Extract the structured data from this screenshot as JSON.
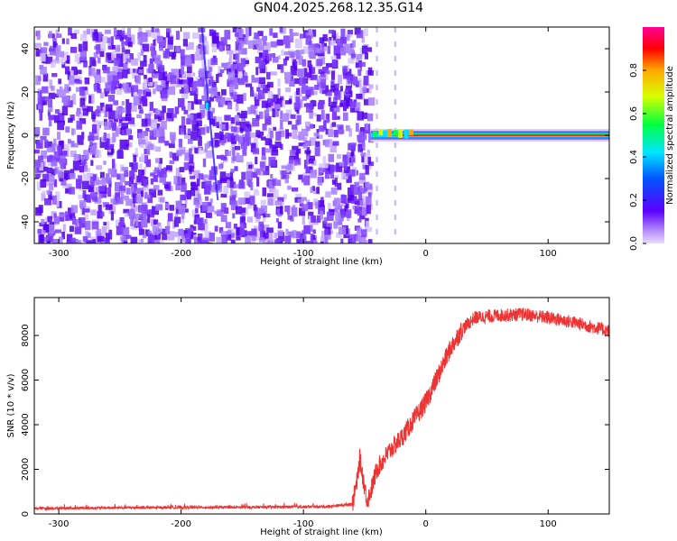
{
  "title": "GN04.2025.268.12.35.G14",
  "chart_data": [
    {
      "type": "heatmap",
      "name": "spectrogram",
      "xlabel": "Height of straight line (km)",
      "ylabel": "Frequency (Hz)",
      "xlim": [
        -320,
        150
      ],
      "ylim": [
        -50,
        50
      ],
      "xticks": [
        -300,
        -200,
        -100,
        0,
        100
      ],
      "yticks": [
        -40,
        -20,
        0,
        20,
        40
      ],
      "colorbar": {
        "label": "Normalized spectral amplitude",
        "range": [
          0,
          1
        ],
        "ticks": [
          0.0,
          0.2,
          0.4,
          0.6,
          0.8
        ]
      },
      "regions": [
        {
          "description": "noise",
          "x": [
            -320,
            -45
          ],
          "y": [
            -50,
            50
          ],
          "amplitude": 0.1
        },
        {
          "description": "carrier",
          "x": [
            -45,
            150
          ],
          "y_center": 0,
          "amplitude": 0.9
        }
      ]
    },
    {
      "type": "line",
      "name": "snr",
      "xlabel": "Height of straight line (km)",
      "ylabel": "SNR (10 * v/v)",
      "xlim": [
        -320,
        150
      ],
      "ylim": [
        0,
        9700
      ],
      "xticks": [
        -300,
        -200,
        -100,
        0,
        100
      ],
      "yticks": [
        0,
        2000,
        4000,
        6000,
        8000
      ],
      "color": "#ee3333",
      "series": [
        {
          "name": "SNR",
          "x": [
            -320,
            -250,
            -150,
            -80,
            -60,
            -56,
            -54,
            -50,
            -48,
            -45,
            -40,
            -30,
            -20,
            -10,
            0,
            10,
            20,
            30,
            40,
            60,
            80,
            100,
            120,
            150
          ],
          "y": [
            250,
            280,
            300,
            330,
            450,
            1500,
            2500,
            1200,
            600,
            1000,
            2000,
            2800,
            3400,
            4200,
            5000,
            6200,
            7400,
            8300,
            8800,
            8900,
            8950,
            8800,
            8600,
            8200
          ]
        }
      ]
    }
  ]
}
